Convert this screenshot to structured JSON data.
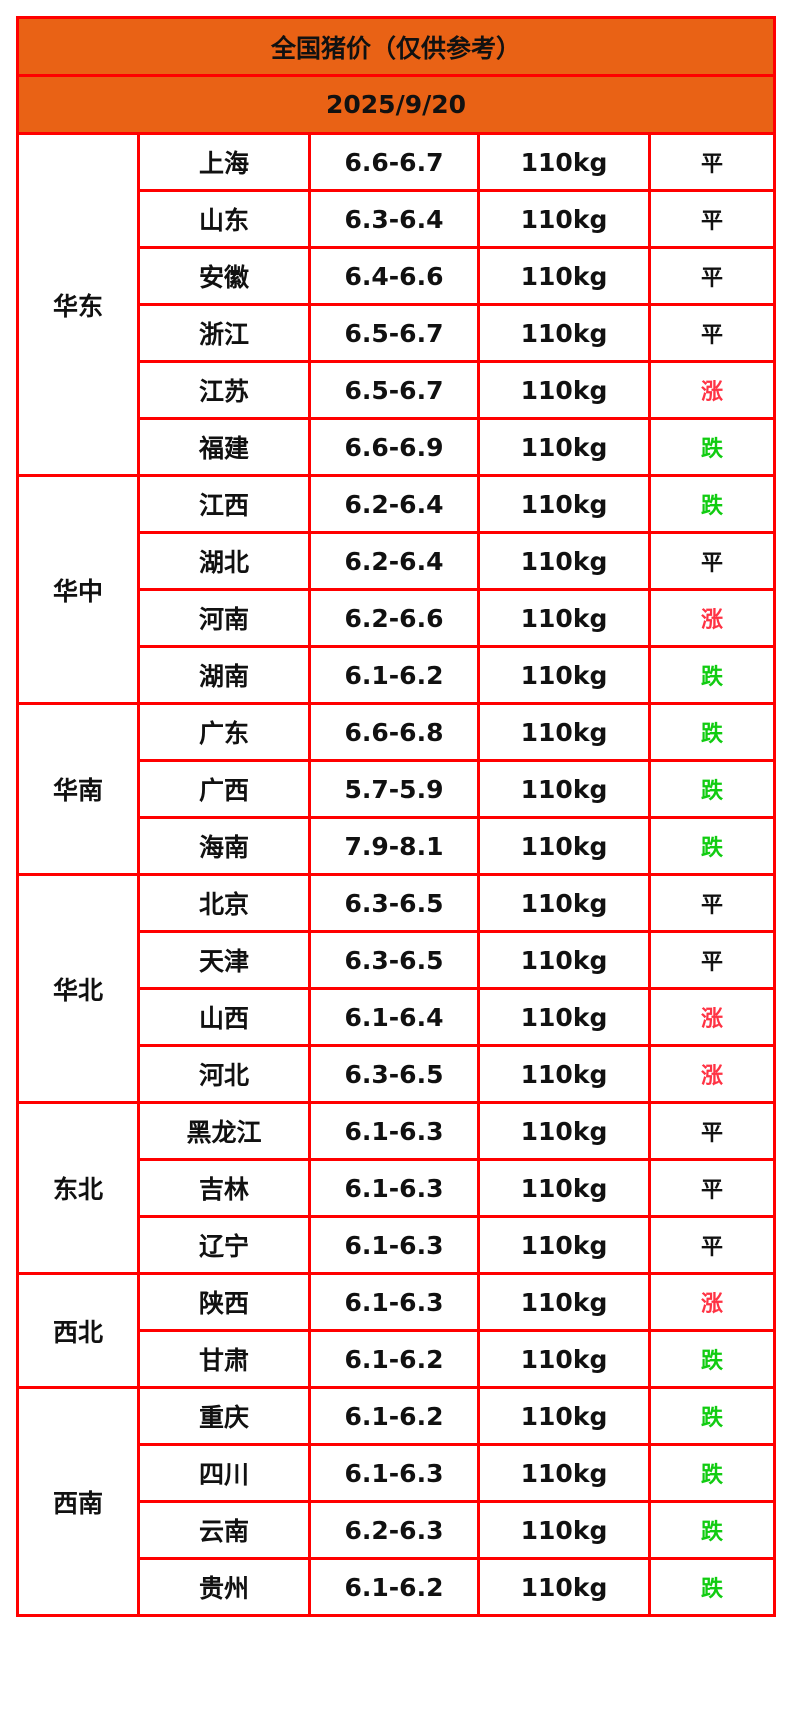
{
  "title": "全国猪价（仅供参考）",
  "date": "2025/9/20",
  "colors": {
    "header_bg": "#e96215",
    "border": "#ff0000",
    "up": "#ff3344",
    "down": "#11cc11",
    "flat": "#111111"
  },
  "regions": [
    {
      "name": "华东",
      "rows": [
        {
          "province": "上海",
          "price": "6.6-6.7",
          "weight": "110kg",
          "trend": "平"
        },
        {
          "province": "山东",
          "price": "6.3-6.4",
          "weight": "110kg",
          "trend": "平"
        },
        {
          "province": "安徽",
          "price": "6.4-6.6",
          "weight": "110kg",
          "trend": "平"
        },
        {
          "province": "浙江",
          "price": "6.5-6.7",
          "weight": "110kg",
          "trend": "平"
        },
        {
          "province": "江苏",
          "price": "6.5-6.7",
          "weight": "110kg",
          "trend": "涨"
        },
        {
          "province": "福建",
          "price": "6.6-6.9",
          "weight": "110kg",
          "trend": "跌"
        }
      ]
    },
    {
      "name": "华中",
      "rows": [
        {
          "province": "江西",
          "price": "6.2-6.4",
          "weight": "110kg",
          "trend": "跌"
        },
        {
          "province": "湖北",
          "price": "6.2-6.4",
          "weight": "110kg",
          "trend": "平"
        },
        {
          "province": "河南",
          "price": "6.2-6.6",
          "weight": "110kg",
          "trend": "涨"
        },
        {
          "province": "湖南",
          "price": "6.1-6.2",
          "weight": "110kg",
          "trend": "跌"
        }
      ]
    },
    {
      "name": "华南",
      "rows": [
        {
          "province": "广东",
          "price": "6.6-6.8",
          "weight": "110kg",
          "trend": "跌"
        },
        {
          "province": "广西",
          "price": "5.7-5.9",
          "weight": "110kg",
          "trend": "跌"
        },
        {
          "province": "海南",
          "price": "7.9-8.1",
          "weight": "110kg",
          "trend": "跌"
        }
      ]
    },
    {
      "name": "华北",
      "rows": [
        {
          "province": "北京",
          "price": "6.3-6.5",
          "weight": "110kg",
          "trend": "平"
        },
        {
          "province": "天津",
          "price": "6.3-6.5",
          "weight": "110kg",
          "trend": "平"
        },
        {
          "province": "山西",
          "price": "6.1-6.4",
          "weight": "110kg",
          "trend": "涨"
        },
        {
          "province": "河北",
          "price": "6.3-6.5",
          "weight": "110kg",
          "trend": "涨"
        }
      ]
    },
    {
      "name": "东北",
      "rows": [
        {
          "province": "黑龙江",
          "price": "6.1-6.3",
          "weight": "110kg",
          "trend": "平"
        },
        {
          "province": "吉林",
          "price": "6.1-6.3",
          "weight": "110kg",
          "trend": "平"
        },
        {
          "province": "辽宁",
          "price": "6.1-6.3",
          "weight": "110kg",
          "trend": "平"
        }
      ]
    },
    {
      "name": "西北",
      "rows": [
        {
          "province": "陕西",
          "price": "6.1-6.3",
          "weight": "110kg",
          "trend": "涨"
        },
        {
          "province": "甘肃",
          "price": "6.1-6.2",
          "weight": "110kg",
          "trend": "跌"
        }
      ]
    },
    {
      "name": "西南",
      "rows": [
        {
          "province": "重庆",
          "price": "6.1-6.2",
          "weight": "110kg",
          "trend": "跌"
        },
        {
          "province": "四川",
          "price": "6.1-6.3",
          "weight": "110kg",
          "trend": "跌"
        },
        {
          "province": "云南",
          "price": "6.2-6.3",
          "weight": "110kg",
          "trend": "跌"
        },
        {
          "province": "贵州",
          "price": "6.1-6.2",
          "weight": "110kg",
          "trend": "跌"
        }
      ]
    }
  ]
}
